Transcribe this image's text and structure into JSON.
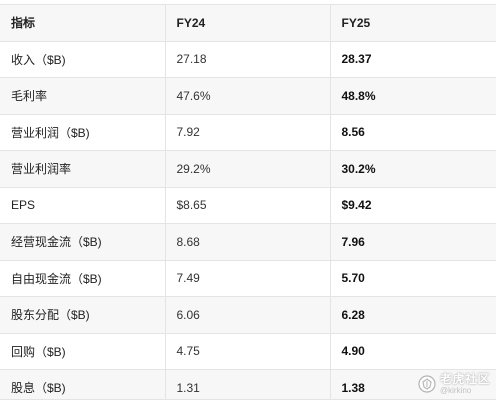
{
  "table": {
    "headers": [
      "指标",
      "FY24",
      "FY25"
    ],
    "rows": [
      {
        "metric": "收入（$B)",
        "fy24": "27.18",
        "fy25": "28.37"
      },
      {
        "metric": "毛利率",
        "fy24": "47.6%",
        "fy25": "48.8%"
      },
      {
        "metric": "营业利润（$B)",
        "fy24": "7.92",
        "fy25": "8.56"
      },
      {
        "metric": "营业利润率",
        "fy24": "29.2%",
        "fy25": "30.2%"
      },
      {
        "metric": "EPS",
        "fy24": "$8.65",
        "fy25": "$9.42"
      },
      {
        "metric": "经营现金流（$B)",
        "fy24": "8.68",
        "fy25": "7.96"
      },
      {
        "metric": "自由现金流（$B)",
        "fy24": "7.49",
        "fy25": "5.70"
      },
      {
        "metric": "股东分配（$B)",
        "fy24": "6.06",
        "fy25": "6.28"
      },
      {
        "metric": "回购（$B)",
        "fy24": "4.75",
        "fy25": "4.90"
      },
      {
        "metric": "股息（$B)",
        "fy24": "1.31",
        "fy25": "1.38"
      }
    ]
  },
  "watermark": {
    "brand": "老虎社区",
    "handle": "@kirkino",
    "icon": "tiger-logo-icon"
  }
}
